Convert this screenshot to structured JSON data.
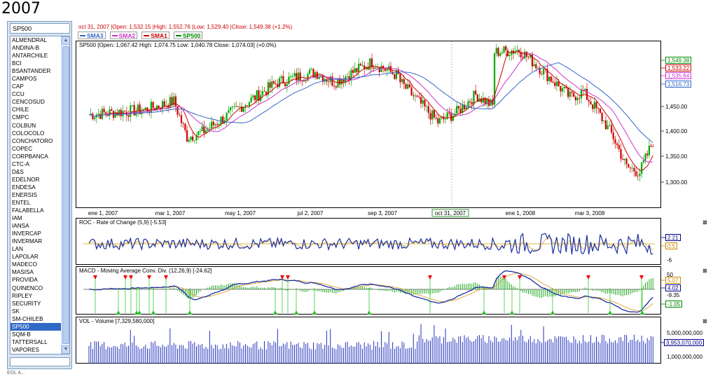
{
  "page_title": "2007",
  "symbol_input": "SP500",
  "symbols": [
    "ALMENDRAL",
    "ANDINA-B",
    "ANTARCHILE",
    "BCI",
    "BSANTANDER",
    "CAMPOS",
    "CAP",
    "CCU",
    "CENCOSUD",
    "CHILE",
    "CMPC",
    "COLBUN",
    "COLOCOLO",
    "CONCHATORO",
    "COPEC",
    "CORPBANCA",
    "CTC-A",
    "D&S",
    "EDELNOR",
    "ENDESA",
    "ENERSIS",
    "ENTEL",
    "FALABELLA",
    "IAM",
    "IANSA",
    "INVERCAP",
    "INVERMAR",
    "LAN",
    "LAPOLAR",
    "MADECO",
    "MASISA",
    "PROVIDA",
    "QUINENCO",
    "RIPLEY",
    "SECURITY",
    "SK",
    "SM-CHILEB",
    "SP500",
    "SQM-B",
    "TATTERSALL",
    "VAPORES"
  ],
  "selected_symbol": "SP500",
  "info_line": "oct 31, 2007 |Open: 1,532.15 |High: 1,552.76 |Low: 1,529.40 |Close: 1,549.38 (+1.2%)",
  "legend": [
    {
      "label": "SMA3",
      "color": "#3366cc"
    },
    {
      "label": "SMA2",
      "color": "#cc33cc"
    },
    {
      "label": "SMA1",
      "color": "#cc0000"
    },
    {
      "label": "SP500",
      "color": "#008800"
    }
  ],
  "price_panel": {
    "title": "SP500 [Open: 1,067.42  High: 1,074.75  Low: 1,040.78  Close: 1,074.03] (+0.0%)",
    "y_ticks": [
      "1,450.00",
      "1,400.00",
      "1,350.00",
      "1,300.00"
    ],
    "tags": [
      {
        "label": "1,549.38",
        "color": "#008800"
      },
      {
        "label": "1,533.22",
        "color": "#cc0000"
      },
      {
        "label": "1,535.84",
        "color": "#cc33cc"
      },
      {
        "label": "1,516.73",
        "color": "#3366cc"
      }
    ],
    "date_labels": [
      "ene 1, 2007",
      "mar 1, 2007",
      "may 1, 2007",
      "jul 2, 2007",
      "sep 3, 2007",
      "oct 31, 2007",
      "ene 1, 2008",
      "mar 3, 2008"
    ]
  },
  "roc_panel": {
    "title": "ROC - Rate of Change (5,9) [-5.53]",
    "y_ticks": [
      "-6"
    ],
    "tags": [
      {
        "label": "2.21",
        "color": "#000088"
      },
      {
        "label": "0.5",
        "color": "#cc8800"
      }
    ]
  },
  "macd_panel": {
    "title": "MACD - Moving Average Conv. Div. (12,26,9) [-24.62]",
    "y_ticks": [
      "50",
      "-9.35"
    ],
    "tags": [
      {
        "label": "5.07",
        "color": "#cc8800"
      },
      {
        "label": "4.02",
        "color": "#000088"
      },
      {
        "label": "-1.05",
        "color": "#008800"
      }
    ]
  },
  "vol_panel": {
    "title": "VOL - Volume [7,329,580,000]",
    "y_ticks": [
      "5,000,000,000",
      "1,000,000,000"
    ],
    "tags": [
      {
        "label": "3,953,070,000",
        "color": "#000088"
      }
    ]
  },
  "close_icon_glyph": "⊠",
  "status_text": "EOL A..."
}
